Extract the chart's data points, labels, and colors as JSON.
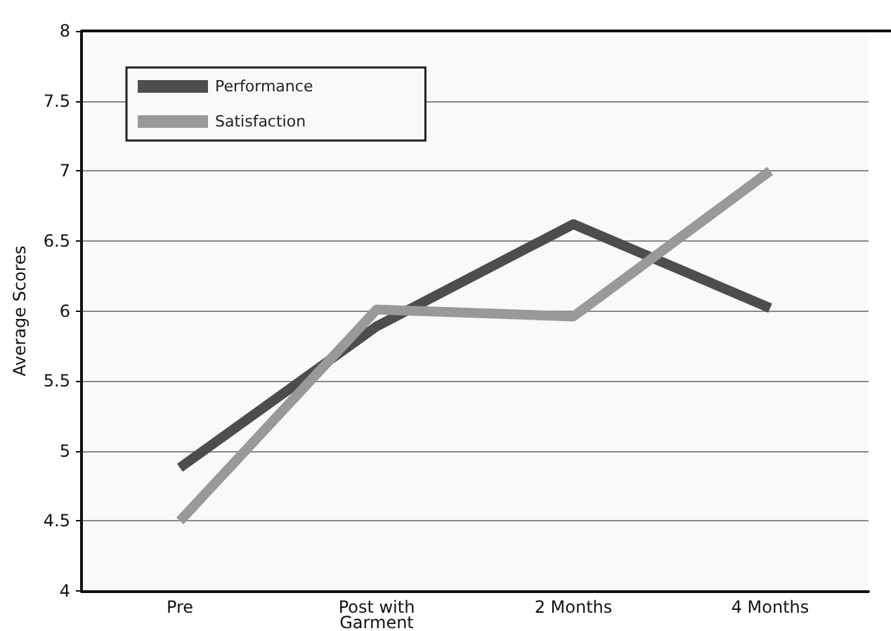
{
  "chart_data": {
    "type": "line",
    "ylabel": "Average Scores",
    "categories": [
      "Pre",
      "Post with\nGarment",
      "2 Months",
      "4 Months"
    ],
    "series": [
      {
        "name": "Performance",
        "color": "#4d4d4d",
        "values": [
          4.88,
          5.89,
          6.62,
          6.02
        ]
      },
      {
        "name": "Satisfaction",
        "color": "#999999",
        "values": [
          4.5,
          6.01,
          5.96,
          7.0
        ]
      }
    ],
    "ylim": [
      4,
      8
    ],
    "yticks": [
      4,
      4.5,
      5,
      5.5,
      6,
      6.5,
      7,
      7.5,
      8
    ],
    "grid": "y",
    "legend": "top left",
    "marker": "none",
    "line_style": "solid"
  }
}
